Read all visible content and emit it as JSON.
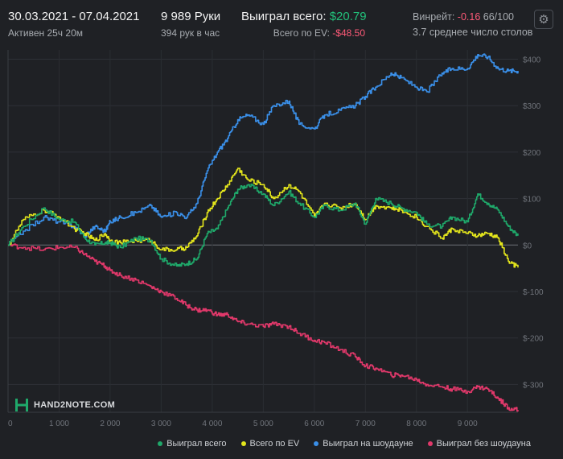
{
  "header": {
    "date_range": "30.03.2021 - 07.04.2021",
    "active": "Активен 25ч 20м",
    "hands": "9 989 Руки",
    "hands_per_hour": "394 рук в час",
    "won_total_label": "Выиграл всего:",
    "won_total_value": "$20.79",
    "ev_total_label": "Всего по EV:",
    "ev_total_value": "-$48.50",
    "winrate_label": "Винрейт:",
    "winrate_value": "-0.16",
    "winrate_rest": "66/100",
    "tables": "3.7 среднее число столов",
    "settings_icon": "gear-icon"
  },
  "logo": {
    "text": "HAND2NOTE.COM"
  },
  "chart_data": {
    "type": "line",
    "xlabel": "",
    "ylabel": "",
    "xlim": [
      0,
      9989
    ],
    "ylim": [
      -360,
      420
    ],
    "x_ticks": [
      0,
      1000,
      2000,
      3000,
      4000,
      5000,
      6000,
      7000,
      8000,
      9000
    ],
    "x_tick_labels": [
      "0",
      "1 000",
      "2 000",
      "3 000",
      "4 000",
      "5 000",
      "6 000",
      "7 000",
      "8 000",
      "9 000"
    ],
    "y_ticks": [
      400,
      300,
      200,
      100,
      0,
      -100,
      -200,
      -300
    ],
    "y_tick_labels": [
      "$400",
      "$300",
      "$200",
      "$100",
      "$0",
      "$-100",
      "$-200",
      "$-300"
    ],
    "grid": true,
    "legend_position": "bottom-right",
    "series": [
      {
        "name": "Выиграл всего",
        "color": "#1fa86a",
        "x": [
          0,
          300,
          700,
          1000,
          1300,
          1500,
          1700,
          1900,
          2000,
          2200,
          2500,
          2800,
          3000,
          3300,
          3500,
          3700,
          3900,
          4100,
          4300,
          4500,
          4700,
          5000,
          5200,
          5500,
          5700,
          6000,
          6200,
          6500,
          6800,
          7000,
          7200,
          7500,
          7700,
          8000,
          8200,
          8500,
          8700,
          9000,
          9200,
          9400,
          9600,
          9800,
          9989
        ],
        "y": [
          0,
          40,
          80,
          55,
          50,
          15,
          0,
          5,
          5,
          -5,
          15,
          10,
          -30,
          -45,
          -40,
          -30,
          25,
          35,
          80,
          120,
          130,
          110,
          85,
          115,
          90,
          60,
          85,
          75,
          90,
          45,
          100,
          90,
          80,
          70,
          45,
          40,
          60,
          50,
          110,
          90,
          75,
          40,
          20
        ]
      },
      {
        "name": "Всего по EV",
        "color": "#e3e51c",
        "x": [
          0,
          300,
          700,
          1000,
          1300,
          1500,
          1700,
          1900,
          2000,
          2200,
          2500,
          2800,
          3000,
          3300,
          3500,
          3700,
          3900,
          4100,
          4300,
          4500,
          4700,
          5000,
          5200,
          5500,
          5700,
          6000,
          6200,
          6500,
          6800,
          7000,
          7200,
          7500,
          7700,
          8000,
          8200,
          8500,
          8700,
          9000,
          9200,
          9400,
          9600,
          9800,
          9989
        ],
        "y": [
          0,
          55,
          75,
          60,
          35,
          25,
          10,
          25,
          10,
          5,
          10,
          10,
          -10,
          -10,
          -5,
          20,
          70,
          100,
          130,
          165,
          140,
          130,
          100,
          130,
          115,
          60,
          90,
          80,
          90,
          55,
          85,
          80,
          75,
          60,
          40,
          15,
          35,
          25,
          20,
          25,
          15,
          -35,
          -48.5
        ]
      },
      {
        "name": "Выиграл на шоудауне",
        "color": "#3a8fe8",
        "x": [
          0,
          300,
          700,
          1000,
          1300,
          1500,
          1700,
          1900,
          2000,
          2200,
          2500,
          2800,
          3000,
          3300,
          3500,
          3700,
          3900,
          4100,
          4300,
          4500,
          4700,
          5000,
          5200,
          5500,
          5700,
          6000,
          6200,
          6500,
          6800,
          7000,
          7200,
          7500,
          7700,
          8000,
          8200,
          8500,
          8700,
          9000,
          9200,
          9400,
          9600,
          9800,
          9989
        ],
        "y": [
          0,
          30,
          60,
          50,
          40,
          20,
          40,
          30,
          50,
          60,
          70,
          85,
          60,
          70,
          60,
          90,
          160,
          200,
          230,
          270,
          280,
          260,
          300,
          310,
          260,
          250,
          280,
          290,
          300,
          320,
          340,
          370,
          360,
          340,
          330,
          370,
          380,
          380,
          410,
          405,
          380,
          375,
          375
        ]
      },
      {
        "name": "Выиграл без шоудауна",
        "color": "#e0386a",
        "x": [
          0,
          300,
          700,
          1000,
          1300,
          1500,
          1700,
          1900,
          2000,
          2200,
          2500,
          2800,
          3000,
          3300,
          3500,
          3700,
          3900,
          4100,
          4300,
          4500,
          4700,
          5000,
          5200,
          5500,
          5700,
          6000,
          6200,
          6500,
          6800,
          7000,
          7200,
          7500,
          7700,
          8000,
          8200,
          8500,
          8700,
          9000,
          9200,
          9400,
          9600,
          9800,
          9989
        ],
        "y": [
          0,
          -5,
          -10,
          -5,
          -5,
          -20,
          -35,
          -45,
          -55,
          -65,
          -75,
          -90,
          -100,
          -115,
          -130,
          -140,
          -140,
          -150,
          -150,
          -165,
          -170,
          -175,
          -170,
          -175,
          -190,
          -205,
          -210,
          -225,
          -240,
          -260,
          -265,
          -280,
          -280,
          -290,
          -300,
          -305,
          -310,
          -315,
          -305,
          -310,
          -330,
          -350,
          -355
        ]
      }
    ]
  }
}
